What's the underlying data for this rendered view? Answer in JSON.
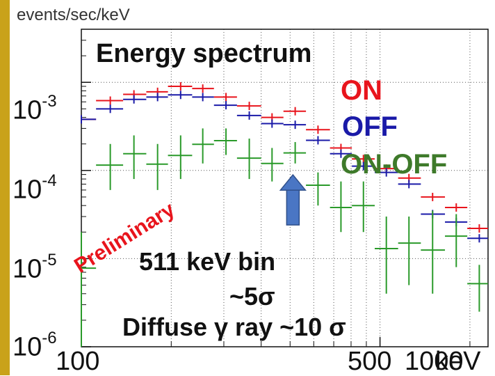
{
  "chart_data": {
    "type": "scatter",
    "title": "Energy spectrum",
    "xlabel": "keV",
    "ylabel": "events/sec/keV",
    "xscale": "log",
    "yscale": "log",
    "xlim": [
      100,
      2300
    ],
    "ylim": [
      1e-06,
      0.004
    ],
    "grid": true,
    "legend_placement": "right",
    "x_tick_labels": [
      "100",
      "500",
      "1000",
      "keV"
    ],
    "y_tick_labels": [
      {
        "base": "10",
        "exp": "-3"
      },
      {
        "base": "10",
        "exp": "-4"
      },
      {
        "base": "10",
        "exp": "-5"
      },
      {
        "base": "10",
        "exp": "-6"
      }
    ],
    "series": [
      {
        "name": "ON",
        "color": "#e8141c",
        "x": [
          100,
          125,
          150,
          180,
          215,
          255,
          305,
          365,
          435,
          520,
          620,
          740,
          880,
          1050,
          1250,
          1500,
          1800,
          2150
        ],
        "y": [
          0.00038,
          0.00062,
          0.00073,
          0.00078,
          0.0009,
          0.00085,
          0.00068,
          0.00054,
          0.0004,
          0.00047,
          0.00029,
          0.00018,
          0.000135,
          0.000105,
          8.2e-05,
          5e-05,
          3.8e-05,
          2.2e-05
        ]
      },
      {
        "name": "OFF",
        "color": "#1a1aa8",
        "x": [
          100,
          125,
          150,
          180,
          215,
          255,
          305,
          365,
          435,
          520,
          620,
          740,
          880,
          1050,
          1250,
          1500,
          1800,
          2150
        ],
        "y": [
          0.00038,
          0.0005,
          0.00064,
          0.00068,
          0.00072,
          0.00068,
          0.00055,
          0.00042,
          0.00034,
          0.00033,
          0.00022,
          0.000155,
          0.000112,
          9.5e-05,
          7e-05,
          3.2e-05,
          2.6e-05,
          1.7e-05
        ],
        "y_min": 1.3e-05
      },
      {
        "name": "ON-OFF",
        "color": "#2a9a2a",
        "x": [
          100,
          125,
          150,
          180,
          215,
          255,
          305,
          365,
          435,
          520,
          620,
          740,
          880,
          1050,
          1250,
          1500,
          1800,
          2150
        ],
        "y": [
          7.8e-06,
          0.000115,
          0.000155,
          0.000118,
          0.000148,
          0.000198,
          0.000218,
          0.000138,
          0.00012,
          0.000158,
          6.8e-05,
          3.8e-05,
          4e-05,
          1.3e-05,
          1.5e-05,
          1.25e-05,
          1.8e-05,
          5.2e-06
        ],
        "y_lo": [
          1e-06,
          6e-05,
          8e-05,
          6e-05,
          8e-05,
          0.00012,
          0.00015,
          8e-05,
          7.5e-05,
          0.00012,
          4e-05,
          2e-05,
          2e-05,
          4e-06,
          5e-06,
          4e-06,
          8e-06,
          2.5e-06
        ],
        "y_hi": [
          2e-05,
          0.0002,
          0.00025,
          0.0002,
          0.00025,
          0.0003,
          0.0003,
          0.00023,
          0.00018,
          0.00021,
          9.5e-05,
          7.5e-05,
          7.5e-05,
          3e-05,
          3e-05,
          3.5e-05,
          3.2e-05,
          8.5e-06
        ]
      }
    ],
    "bin_edges": [
      100,
      112,
      138,
      165,
      195,
      235,
      278,
      332,
      400,
      475,
      565,
      680,
      805,
      960,
      1150,
      1370,
      1650,
      1960,
      2300
    ],
    "annotations": [
      "Preliminary",
      "511 keV bin",
      "~5σ",
      "Diffuse γ ray ~10 σ"
    ],
    "arrow_color": "#4a76c4"
  }
}
